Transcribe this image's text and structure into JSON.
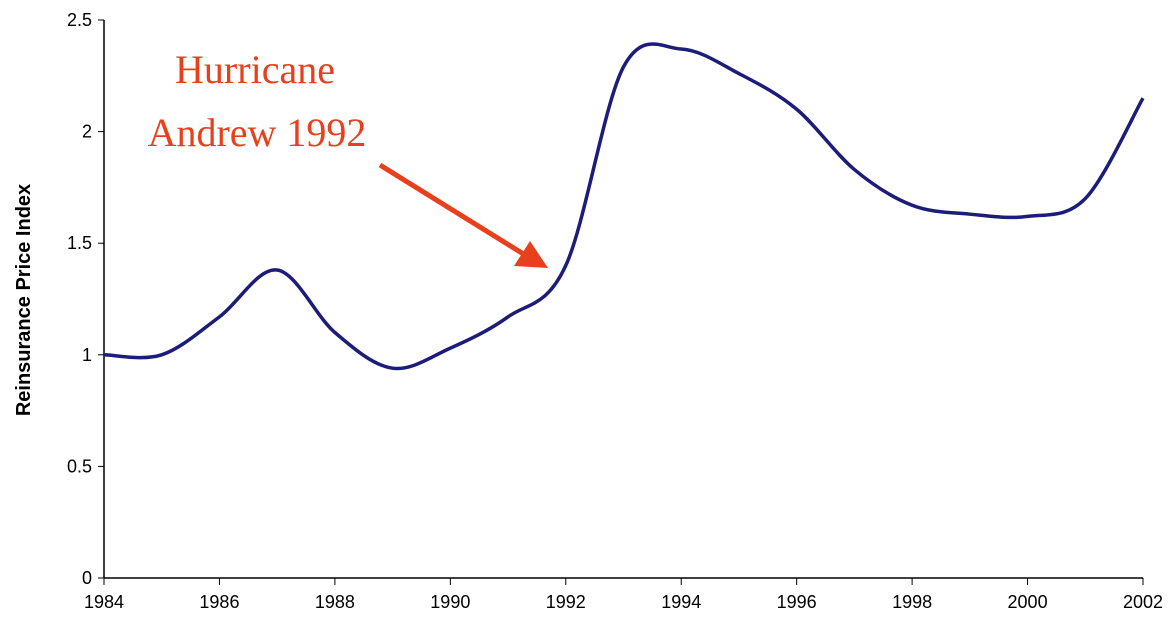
{
  "chart_data": {
    "type": "line",
    "y_label": "Reinsurance Price Index",
    "annotation": [
      "Hurricane",
      "Andrew 1992"
    ],
    "annotation_color": "#e8401c",
    "x": [
      1984,
      1985,
      1986,
      1987,
      1988,
      1989,
      1990,
      1991,
      1992,
      1993,
      1994,
      1995,
      1996,
      1997,
      1998,
      1999,
      2000,
      2001,
      2002
    ],
    "series": [
      {
        "color": "#1c1c7a",
        "values": [
          1.0,
          1.0,
          1.17,
          1.38,
          1.1,
          0.94,
          1.03,
          1.17,
          1.4,
          2.29,
          2.37,
          2.26,
          2.1,
          1.83,
          1.67,
          1.63,
          1.62,
          1.7,
          2.15
        ]
      }
    ],
    "xlim": [
      1984,
      2002
    ],
    "xticks": [
      1984,
      1986,
      1988,
      1990,
      1992,
      1994,
      1996,
      1998,
      2000,
      2002
    ],
    "ylim": [
      0,
      2.5
    ],
    "yticks": [
      0,
      0.5,
      1,
      1.5,
      2,
      2.5
    ],
    "grid": false
  }
}
